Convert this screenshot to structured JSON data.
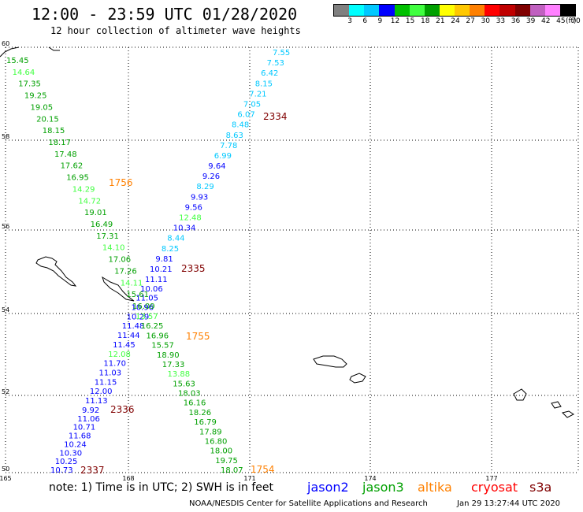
{
  "header": {
    "title": "12:00 - 23:59 UTC 01/28/2020",
    "subtitle": "12 hour collection of altimeter wave heights"
  },
  "colorbar": {
    "unit": "(ft)",
    "swatches": [
      "#808080",
      "#00ffff",
      "#00c8ff",
      "#0000ff",
      "#00c000",
      "#40ff40",
      "#00a000",
      "#ffff00",
      "#ffc800",
      "#ff8000",
      "#ff0000",
      "#c00000",
      "#800000",
      "#c060c0",
      "#ff80ff",
      "#000000"
    ],
    "labels": [
      "3",
      "6",
      "9",
      "12",
      "15",
      "18",
      "21",
      "24",
      "27",
      "30",
      "33",
      "36",
      "39",
      "42",
      "45",
      "70"
    ]
  },
  "axes": {
    "lat_labels": [
      "60",
      "58",
      "56",
      "54",
      "52",
      "50"
    ],
    "lon_labels": [
      "165",
      "168",
      "171",
      "174",
      "177"
    ]
  },
  "tracks": [
    {
      "time": "2334",
      "time_color": "#800000",
      "values": [
        {
          "v": "7.55",
          "c": "#00c8ff"
        },
        {
          "v": "7.53",
          "c": "#00c8ff"
        },
        {
          "v": "6.42",
          "c": "#00c8ff"
        },
        {
          "v": "8.15",
          "c": "#00c8ff"
        },
        {
          "v": "7.21",
          "c": "#00c8ff"
        },
        {
          "v": "7.05",
          "c": "#00c8ff"
        },
        {
          "v": "6.07",
          "c": "#00c8ff"
        },
        {
          "v": "8.48",
          "c": "#00c8ff"
        },
        {
          "v": "8.63",
          "c": "#00c8ff"
        },
        {
          "v": "7.78",
          "c": "#00c8ff"
        },
        {
          "v": "6.99",
          "c": "#00c8ff"
        },
        {
          "v": "9.64",
          "c": "#0000ff"
        },
        {
          "v": "9.26",
          "c": "#0000ff"
        },
        {
          "v": "8.29",
          "c": "#00c8ff"
        },
        {
          "v": "9.93",
          "c": "#0000ff"
        },
        {
          "v": "9.56",
          "c": "#0000ff"
        },
        {
          "v": "12.48",
          "c": "#40ff40"
        },
        {
          "v": "10.34",
          "c": "#0000ff"
        },
        {
          "v": "8.44",
          "c": "#00c8ff"
        },
        {
          "v": "8.25",
          "c": "#00c8ff"
        },
        {
          "v": "9.81",
          "c": "#0000ff"
        },
        {
          "v": "10.21",
          "c": "#0000ff"
        }
      ]
    },
    {
      "time": "2335",
      "time_color": "#800000",
      "values": [
        {
          "v": "11.11",
          "c": "#0000ff"
        },
        {
          "v": "10.06",
          "c": "#0000ff"
        },
        {
          "v": "11.05",
          "c": "#0000ff"
        },
        {
          "v": "10.96",
          "c": "#0000ff"
        },
        {
          "v": "10.29",
          "c": "#0000ff"
        },
        {
          "v": "11.48",
          "c": "#0000ff"
        },
        {
          "v": "11.44",
          "c": "#0000ff"
        },
        {
          "v": "11.45",
          "c": "#0000ff"
        },
        {
          "v": "12.08",
          "c": "#40ff40"
        },
        {
          "v": "11.70",
          "c": "#0000ff"
        },
        {
          "v": "11.03",
          "c": "#0000ff"
        },
        {
          "v": "11.15",
          "c": "#0000ff"
        },
        {
          "v": "12.00",
          "c": "#0000ff"
        },
        {
          "v": "11.13",
          "c": "#0000ff"
        }
      ]
    },
    {
      "time": "2336",
      "time_color": "#800000",
      "values": [
        {
          "v": "9.92",
          "c": "#0000ff"
        },
        {
          "v": "11.06",
          "c": "#0000ff"
        },
        {
          "v": "10.71",
          "c": "#0000ff"
        },
        {
          "v": "11.68",
          "c": "#0000ff"
        },
        {
          "v": "10.24",
          "c": "#0000ff"
        },
        {
          "v": "10.30",
          "c": "#0000ff"
        },
        {
          "v": "10.25",
          "c": "#0000ff"
        },
        {
          "v": "10.73",
          "c": "#0000ff"
        }
      ]
    },
    {
      "time": "2337",
      "time_color": "#800000",
      "values": []
    },
    {
      "time": "1756",
      "time_color": "#ff8000",
      "values": [
        {
          "v": "15.45",
          "c": "#00a000"
        },
        {
          "v": "14.64",
          "c": "#40ff40"
        },
        {
          "v": "17.35",
          "c": "#00a000"
        },
        {
          "v": "19.25",
          "c": "#00a000"
        },
        {
          "v": "19.05",
          "c": "#00a000"
        },
        {
          "v": "20.15",
          "c": "#00a000"
        },
        {
          "v": "18.15",
          "c": "#00a000"
        },
        {
          "v": "18.17",
          "c": "#00a000"
        },
        {
          "v": "17.48",
          "c": "#00a000"
        },
        {
          "v": "17.62",
          "c": "#00a000"
        },
        {
          "v": "16.95",
          "c": "#00a000"
        },
        {
          "v": "14.29",
          "c": "#40ff40"
        },
        {
          "v": "14.72",
          "c": "#40ff40"
        },
        {
          "v": "19.01",
          "c": "#00a000"
        },
        {
          "v": "16.49",
          "c": "#00a000"
        },
        {
          "v": "17.31",
          "c": "#00a000"
        },
        {
          "v": "14.10",
          "c": "#40ff40"
        },
        {
          "v": "17.06",
          "c": "#00a000"
        },
        {
          "v": "17.26",
          "c": "#00a000"
        },
        {
          "v": "14.11",
          "c": "#40ff40"
        },
        {
          "v": "15.61",
          "c": "#00a000"
        },
        {
          "v": "16.09",
          "c": "#00a000"
        }
      ]
    },
    {
      "time": "1755",
      "time_color": "#ff8000",
      "values": [
        {
          "v": "13.57",
          "c": "#40ff40"
        },
        {
          "v": "16.25",
          "c": "#00a000"
        },
        {
          "v": "16.96",
          "c": "#00a000"
        },
        {
          "v": "15.57",
          "c": "#00a000"
        },
        {
          "v": "18.90",
          "c": "#00a000"
        },
        {
          "v": "17.33",
          "c": "#00a000"
        },
        {
          "v": "13.88",
          "c": "#40ff40"
        },
        {
          "v": "15.63",
          "c": "#00a000"
        },
        {
          "v": "18.03",
          "c": "#00a000"
        },
        {
          "v": "16.16",
          "c": "#00a000"
        },
        {
          "v": "18.26",
          "c": "#00a000"
        },
        {
          "v": "16.79",
          "c": "#00a000"
        },
        {
          "v": "17.89",
          "c": "#00a000"
        },
        {
          "v": "16.80",
          "c": "#00a000"
        },
        {
          "v": "18.00",
          "c": "#00a000"
        },
        {
          "v": "19.75",
          "c": "#00a000"
        },
        {
          "v": "18.07",
          "c": "#00a000"
        }
      ]
    },
    {
      "time": "1754",
      "time_color": "#ff8000",
      "values": []
    }
  ],
  "footer": {
    "note": "note: 1) Time is in UTC; 2) SWH is in feet",
    "satellites": [
      {
        "name": "jason2",
        "color": "#0000ff"
      },
      {
        "name": "jason3",
        "color": "#00a000"
      },
      {
        "name": "altika",
        "color": "#ff8000"
      },
      {
        "name": "cryosat",
        "color": "#ff0000"
      },
      {
        "name": "s3a",
        "color": "#800000"
      }
    ],
    "credit": "NOAA/NESDIS Center for Satellite Applications and Research",
    "timestamp": "Jan 29 13:27:44 UTC 2020"
  }
}
